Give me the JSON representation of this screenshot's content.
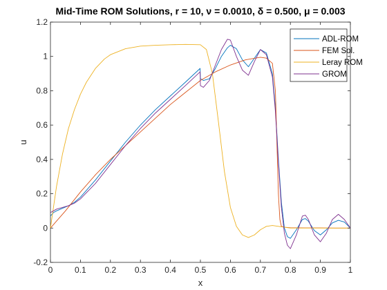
{
  "chart_data": {
    "type": "line",
    "title": "Mid-Time ROM Solutions, r = 10, ν = 0.0010, δ = 0.500, μ = 0.003",
    "xlabel": "x",
    "ylabel": "u",
    "xlim": [
      0,
      1
    ],
    "ylim": [
      -0.2,
      1.2
    ],
    "xticks": [
      "0",
      "0.1",
      "0.2",
      "0.3",
      "0.4",
      "0.5",
      "0.6",
      "0.7",
      "0.8",
      "0.9",
      "1"
    ],
    "yticks": [
      "-0.2",
      "0",
      "0.2",
      "0.4",
      "0.6",
      "0.8",
      "1",
      "1.2"
    ],
    "legend_position": "top-right",
    "grid": false,
    "series": [
      {
        "name": "ADL-ROM",
        "color": "#0072BD",
        "x": [
          0.0,
          0.01,
          0.02,
          0.04,
          0.06,
          0.08,
          0.1,
          0.15,
          0.2,
          0.25,
          0.3,
          0.35,
          0.4,
          0.45,
          0.499,
          0.5,
          0.51,
          0.53,
          0.55,
          0.57,
          0.59,
          0.6,
          0.62,
          0.64,
          0.66,
          0.68,
          0.7,
          0.72,
          0.74,
          0.75,
          0.76,
          0.77,
          0.78,
          0.79,
          0.8,
          0.82,
          0.84,
          0.85,
          0.86,
          0.88,
          0.9,
          0.92,
          0.94,
          0.96,
          0.98,
          1.0
        ],
        "y": [
          0.07,
          0.09,
          0.1,
          0.115,
          0.13,
          0.15,
          0.18,
          0.28,
          0.39,
          0.5,
          0.6,
          0.69,
          0.77,
          0.85,
          0.93,
          0.87,
          0.86,
          0.87,
          0.93,
          1.0,
          1.05,
          1.065,
          1.045,
          0.98,
          0.94,
          0.99,
          1.04,
          1.02,
          0.9,
          0.7,
          0.4,
          0.15,
          0.0,
          -0.05,
          -0.06,
          -0.01,
          0.05,
          0.055,
          0.04,
          -0.015,
          -0.04,
          -0.01,
          0.03,
          0.045,
          0.035,
          0.0
        ]
      },
      {
        "name": "FEM Sol.",
        "color": "#D95319",
        "x": [
          0.0,
          0.02,
          0.05,
          0.1,
          0.15,
          0.2,
          0.25,
          0.3,
          0.35,
          0.4,
          0.45,
          0.5,
          0.55,
          0.6,
          0.65,
          0.7,
          0.72,
          0.74,
          0.75,
          0.755,
          0.76,
          0.765,
          0.77,
          0.78,
          0.8,
          0.85,
          0.9,
          0.95,
          1.0
        ],
        "y": [
          0.0,
          0.04,
          0.1,
          0.21,
          0.31,
          0.4,
          0.48,
          0.56,
          0.64,
          0.72,
          0.79,
          0.86,
          0.91,
          0.95,
          0.98,
          0.995,
          0.99,
          0.96,
          0.8,
          0.5,
          0.2,
          0.05,
          0.01,
          0.005,
          0.002,
          0.001,
          0.001,
          0.0,
          0.0
        ]
      },
      {
        "name": "Leray ROM",
        "color": "#EDB120",
        "x": [
          0.0,
          0.01,
          0.02,
          0.04,
          0.06,
          0.08,
          0.1,
          0.12,
          0.15,
          0.18,
          0.2,
          0.25,
          0.3,
          0.35,
          0.4,
          0.45,
          0.5,
          0.52,
          0.54,
          0.56,
          0.58,
          0.6,
          0.62,
          0.64,
          0.66,
          0.68,
          0.7,
          0.72,
          0.74,
          0.76,
          0.78,
          0.8,
          0.85,
          0.9,
          0.95,
          1.0
        ],
        "y": [
          0.0,
          0.12,
          0.24,
          0.43,
          0.58,
          0.69,
          0.78,
          0.85,
          0.93,
          0.985,
          1.01,
          1.045,
          1.06,
          1.065,
          1.068,
          1.07,
          1.068,
          1.04,
          0.9,
          0.62,
          0.33,
          0.12,
          0.01,
          -0.04,
          -0.055,
          -0.04,
          -0.01,
          0.01,
          0.015,
          0.01,
          0.005,
          0.0,
          0.0,
          0.0,
          0.0,
          0.0
        ]
      },
      {
        "name": "GROM",
        "color": "#7E2F8E",
        "x": [
          0.0,
          0.01,
          0.02,
          0.04,
          0.06,
          0.08,
          0.1,
          0.15,
          0.2,
          0.25,
          0.3,
          0.35,
          0.4,
          0.45,
          0.499,
          0.5,
          0.51,
          0.53,
          0.55,
          0.57,
          0.59,
          0.6,
          0.62,
          0.64,
          0.66,
          0.68,
          0.7,
          0.72,
          0.74,
          0.75,
          0.76,
          0.77,
          0.78,
          0.79,
          0.8,
          0.82,
          0.84,
          0.85,
          0.86,
          0.88,
          0.9,
          0.92,
          0.94,
          0.96,
          0.98,
          1.0
        ],
        "y": [
          0.09,
          0.1,
          0.11,
          0.12,
          0.13,
          0.145,
          0.17,
          0.26,
          0.37,
          0.48,
          0.58,
          0.67,
          0.75,
          0.83,
          0.91,
          0.83,
          0.82,
          0.86,
          0.95,
          1.04,
          1.1,
          1.095,
          1.0,
          0.92,
          0.89,
          0.97,
          1.04,
          1.01,
          0.88,
          0.68,
          0.38,
          0.12,
          -0.03,
          -0.1,
          -0.12,
          -0.04,
          0.07,
          0.075,
          0.05,
          -0.04,
          -0.08,
          -0.03,
          0.05,
          0.08,
          0.05,
          0.0
        ]
      }
    ]
  }
}
